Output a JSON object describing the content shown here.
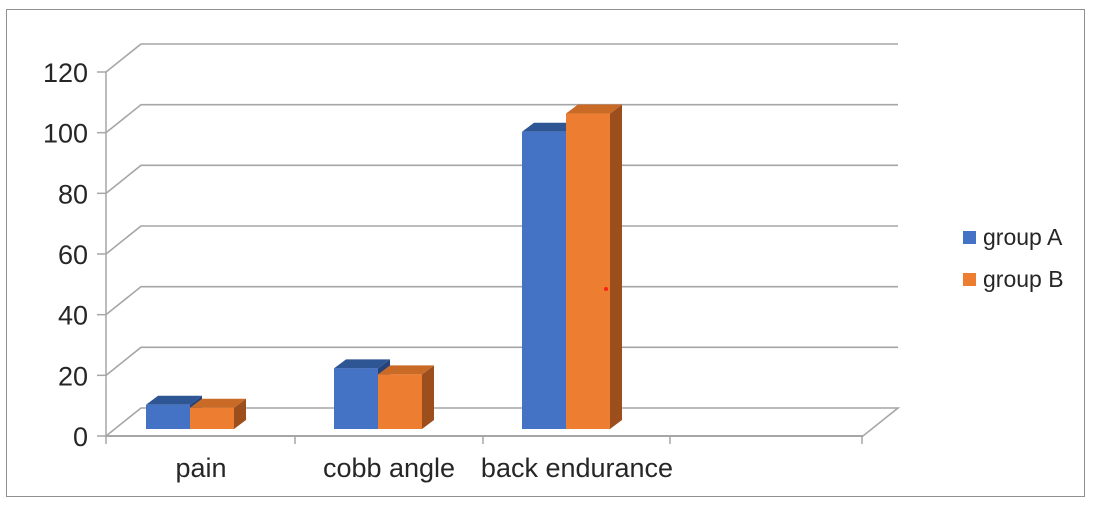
{
  "chart_data": {
    "type": "bar",
    "subtype": "3d-clustered-column",
    "title": "",
    "xlabel": "",
    "ylabel": "",
    "categories": [
      "pain",
      "cobb angle",
      "back endurance"
    ],
    "series": [
      {
        "name": "group A",
        "values": [
          8,
          20,
          98
        ],
        "color": "#4472C4",
        "color_top": "#2E5594",
        "color_side": "#24437A"
      },
      {
        "name": "group B",
        "values": [
          7,
          18,
          104
        ],
        "color": "#ED7D31",
        "color_top": "#C96A27",
        "color_side": "#9C4E1D"
      }
    ],
    "ylim": [
      0,
      120
    ],
    "yticks": [
      0,
      20,
      40,
      60,
      80,
      100,
      120
    ],
    "grid": true,
    "legend_position": "right",
    "colors": {
      "gridline": "#A6A6A6",
      "axis": "#A6A6A6",
      "text": "#262626",
      "background": "#FFFFFF",
      "border": "#8F8F8F"
    }
  },
  "legend": {
    "items": [
      {
        "label": "group A",
        "swatch_color": "#4472C4"
      },
      {
        "label": "group B",
        "swatch_color": "#ED7D31"
      }
    ]
  },
  "annotations": {
    "artifact_dot": {
      "color": "#FF1F12"
    }
  }
}
